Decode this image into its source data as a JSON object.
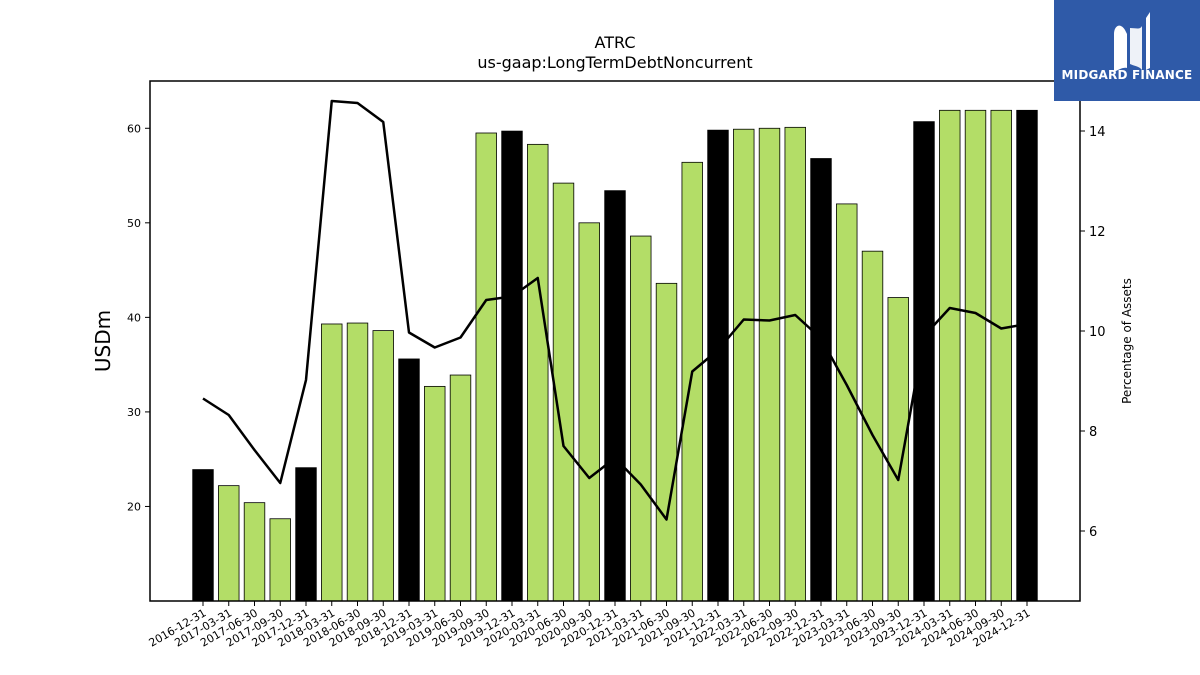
{
  "logo": {
    "text": "MIDGARD FINANCE",
    "background": "#2f5aa8"
  },
  "chart_data": {
    "type": "bar",
    "title": "ATRC",
    "subtitle": "us-gaap:LongTermDebtNoncurrent",
    "ylabel": "USDm",
    "y2label": "Percentage of Assets",
    "ylim": [
      10,
      65
    ],
    "y2lim": [
      4.6,
      15.0
    ],
    "yticks": [
      20,
      30,
      40,
      50,
      60
    ],
    "y2ticks": [
      6,
      8,
      10,
      12,
      14
    ],
    "categories": [
      "2016-12-31",
      "2017-03-31",
      "2017-06-30",
      "2017-09-30",
      "2017-12-31",
      "2018-03-31",
      "2018-06-30",
      "2018-09-30",
      "2018-12-31",
      "2019-03-31",
      "2019-06-30",
      "2019-09-30",
      "2019-12-31",
      "2020-03-31",
      "2020-06-30",
      "2020-09-30",
      "2020-12-31",
      "2021-03-31",
      "2021-06-30",
      "2021-09-30",
      "2021-12-31",
      "2022-03-31",
      "2022-06-30",
      "2022-09-30",
      "2022-12-31",
      "2023-03-31",
      "2023-06-30",
      "2023-09-30",
      "2023-12-31",
      "2024-03-31",
      "2024-06-30",
      "2024-09-30",
      "2024-12-31"
    ],
    "series": [
      {
        "type": "bar",
        "axis": "left",
        "values": [
          23.9,
          22.2,
          20.4,
          18.7,
          24.1,
          39.3,
          39.4,
          38.6,
          35.6,
          32.7,
          33.9,
          59.5,
          59.7,
          58.3,
          54.2,
          50.0,
          53.4,
          48.6,
          43.6,
          56.4,
          59.8,
          59.9,
          60.0,
          60.1,
          56.8,
          52.0,
          47.0,
          42.1,
          60.7,
          61.9,
          61.9,
          61.9,
          61.9
        ],
        "year_end": [
          true,
          false,
          false,
          false,
          true,
          false,
          false,
          false,
          true,
          false,
          false,
          false,
          true,
          false,
          false,
          false,
          true,
          false,
          false,
          false,
          true,
          false,
          false,
          false,
          true,
          false,
          false,
          false,
          true,
          false,
          false,
          false,
          true
        ]
      },
      {
        "type": "line",
        "axis": "right",
        "values": [
          8.65,
          8.32,
          7.62,
          6.96,
          9.02,
          14.6,
          14.56,
          14.18,
          9.97,
          9.67,
          9.87,
          10.62,
          10.69,
          11.06,
          7.7,
          7.06,
          7.46,
          6.93,
          6.23,
          9.19,
          9.62,
          10.23,
          10.21,
          10.32,
          9.85,
          8.92,
          7.92,
          7.02,
          9.9,
          10.46,
          10.36,
          10.05,
          10.14
        ]
      }
    ],
    "colors": {
      "bar": "#b3dd67",
      "bar_year_end": "#000000",
      "line": "#000000"
    },
    "grid": false
  }
}
